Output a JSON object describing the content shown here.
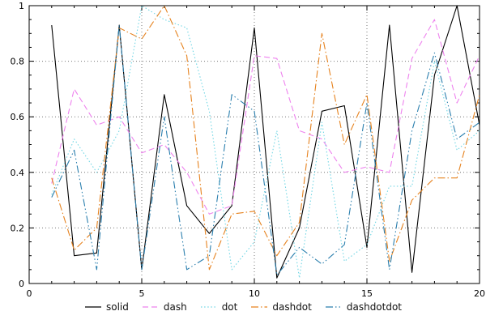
{
  "chart_data": {
    "type": "line",
    "title": "",
    "xlabel": "",
    "ylabel": "",
    "xlim": [
      0,
      20
    ],
    "ylim": [
      0,
      1
    ],
    "xticks": [
      0,
      5,
      10,
      15,
      20
    ],
    "xtick_labels": [
      "0",
      "5",
      "10",
      "15",
      "20"
    ],
    "yticks": [
      0,
      0.2,
      0.4,
      0.6,
      0.8,
      1
    ],
    "ytick_labels": [
      "0",
      "0.2",
      "0.4",
      "0.6",
      "0.8",
      "1"
    ],
    "minor_x_step": 1,
    "minor_y_step": 0.05,
    "grid": true,
    "grid_color": "#777777",
    "border_color": "#000000",
    "legend_position": "bottom-center",
    "x": [
      1,
      2,
      3,
      4,
      5,
      6,
      7,
      8,
      9,
      10,
      11,
      12,
      13,
      14,
      15,
      16,
      17,
      18,
      19,
      20
    ],
    "series": [
      {
        "name": "solid",
        "style": "solid",
        "color": "#000000",
        "values": [
          0.93,
          0.1,
          0.11,
          0.93,
          0.05,
          0.68,
          0.28,
          0.18,
          0.28,
          0.92,
          0.02,
          0.2,
          0.62,
          0.64,
          0.13,
          0.93,
          0.04,
          0.75,
          1.0,
          0.57
        ]
      },
      {
        "name": "dash",
        "style": "dash",
        "color": "#ee82ee",
        "values": [
          0.36,
          0.7,
          0.57,
          0.6,
          0.47,
          0.5,
          0.4,
          0.25,
          0.28,
          0.82,
          0.81,
          0.55,
          0.52,
          0.4,
          0.42,
          0.4,
          0.81,
          0.95,
          0.65,
          0.82
        ]
      },
      {
        "name": "dot",
        "style": "dot",
        "color": "#70d6e4",
        "values": [
          0.32,
          0.52,
          0.4,
          0.55,
          1.0,
          0.95,
          0.92,
          0.62,
          0.05,
          0.15,
          0.55,
          0.02,
          0.58,
          0.08,
          0.14,
          0.35,
          0.35,
          0.8,
          0.48,
          0.55
        ]
      },
      {
        "name": "dashdot",
        "style": "dashdot",
        "color": "#e6821e",
        "values": [
          0.38,
          0.12,
          0.2,
          0.92,
          0.88,
          1.0,
          0.82,
          0.05,
          0.25,
          0.26,
          0.1,
          0.22,
          0.9,
          0.5,
          0.68,
          0.08,
          0.3,
          0.38,
          0.38,
          0.68
        ]
      },
      {
        "name": "dashdotdot",
        "style": "dashdotdot",
        "color": "#2b7fae",
        "values": [
          0.31,
          0.48,
          0.05,
          0.93,
          0.05,
          0.6,
          0.05,
          0.1,
          0.68,
          0.62,
          0.03,
          0.13,
          0.07,
          0.14,
          0.65,
          0.05,
          0.55,
          0.83,
          0.52,
          0.58
        ]
      }
    ]
  }
}
